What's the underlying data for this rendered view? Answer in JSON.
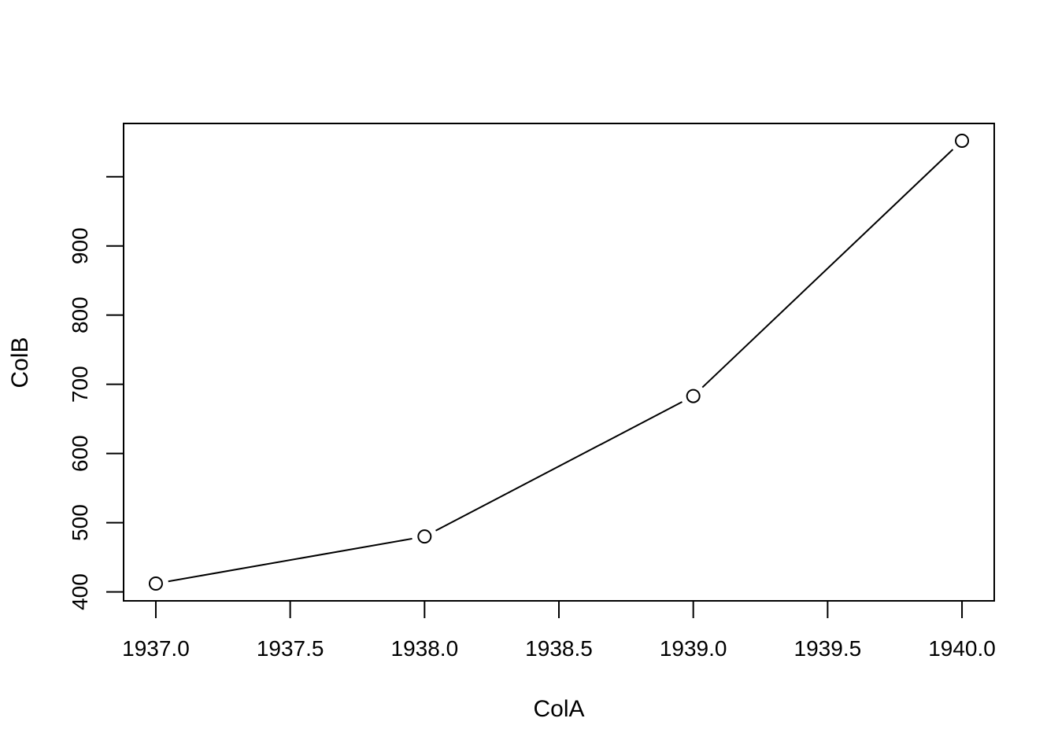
{
  "chart_data": {
    "type": "line",
    "title": "",
    "xlabel": "ColA",
    "ylabel": "ColB",
    "x": [
      1937,
      1938,
      1939,
      1940
    ],
    "y": [
      412,
      480,
      683,
      1052
    ],
    "xlim": [
      1936.88,
      1940.12
    ],
    "ylim": [
      387,
      1077
    ],
    "xticks": [
      1937.0,
      1937.5,
      1938.0,
      1938.5,
      1939.0,
      1939.5,
      1940.0
    ],
    "xtick_labels": [
      "1937.0",
      "1937.5",
      "1938.0",
      "1938.5",
      "1939.0",
      "1939.5",
      "1940.0"
    ],
    "yticks": [
      400,
      500,
      600,
      700,
      800,
      900,
      1000
    ],
    "ytick_labels": [
      "400",
      "500",
      "600",
      "700",
      "800",
      "900",
      ""
    ],
    "grid": false,
    "marker": "open-circle",
    "line_color": "#000000"
  }
}
